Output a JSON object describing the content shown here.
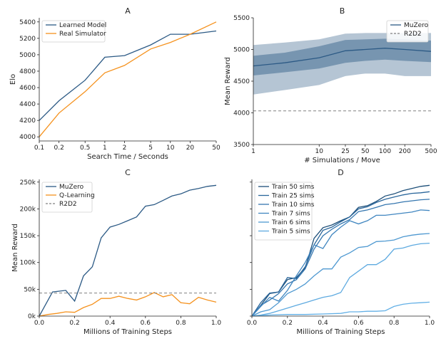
{
  "chart_data": [
    {
      "id": "A",
      "type": "line",
      "title": "A",
      "xlabel": "Search Time / Seconds",
      "ylabel": "Elo",
      "xscale": "log",
      "xlim": [
        0.1,
        50
      ],
      "ylim": [
        3950,
        5450
      ],
      "xticks": [
        0.1,
        0.2,
        0.5,
        1,
        2,
        5,
        10,
        20,
        50
      ],
      "xticklabels": [
        "0.1",
        "0.2",
        "0.5",
        "1",
        "2",
        "5",
        "10",
        "20",
        "50"
      ],
      "yticks": [
        4000,
        4200,
        4400,
        4600,
        4800,
        5000,
        5200,
        5400
      ],
      "yticklabels": [
        "4000",
        "4200",
        "4400",
        "4600",
        "4800",
        "5000",
        "5200",
        "5400"
      ],
      "legend": "top-left",
      "series": [
        {
          "name": "Learned Model",
          "color": "#2c5a85",
          "x": [
            0.1,
            0.2,
            0.5,
            1,
            2,
            5,
            10,
            20,
            50
          ],
          "y": [
            4200,
            4440,
            4690,
            4970,
            4990,
            5120,
            5250,
            5250,
            5290
          ]
        },
        {
          "name": "Real Simulator",
          "color": "#f5921e",
          "x": [
            0.1,
            0.2,
            0.5,
            1,
            2,
            5,
            10,
            20,
            50
          ],
          "y": [
            4000,
            4290,
            4550,
            4780,
            4870,
            5070,
            5150,
            5250,
            5400
          ]
        }
      ]
    },
    {
      "id": "B",
      "type": "line",
      "title": "B",
      "xlabel": "# Simulations / Move",
      "ylabel": "Mean Reward",
      "xscale": "log",
      "xlim": [
        1,
        500
      ],
      "ylim": [
        3500,
        5500
      ],
      "xticks": [
        1,
        10,
        25,
        50,
        100,
        200,
        500
      ],
      "xticklabels": [
        "1",
        "10",
        "25",
        "50",
        "100",
        "200",
        "500"
      ],
      "yticks": [
        3500,
        4000,
        4500,
        5000,
        5500
      ],
      "yticklabels": [
        "3500",
        "4000",
        "4500",
        "5000",
        "5500"
      ],
      "legend": "top-right",
      "series": [
        {
          "name": "MuZero",
          "color": "#2c5a85",
          "x": [
            1,
            3,
            10,
            25,
            50,
            100,
            200,
            500
          ],
          "y": [
            4740,
            4790,
            4870,
            4980,
            5000,
            5020,
            5000,
            4970
          ],
          "band_inner_low": [
            4590,
            4640,
            4700,
            4790,
            4820,
            4840,
            4820,
            4800
          ],
          "band_inner_high": [
            4900,
            4950,
            5050,
            5150,
            5160,
            5170,
            5160,
            5140
          ],
          "band_outer_low": [
            4290,
            4360,
            4440,
            4580,
            4620,
            4620,
            4580,
            4580
          ],
          "band_outer_high": [
            5070,
            5110,
            5160,
            5250,
            5260,
            5260,
            5260,
            5260
          ]
        },
        {
          "name": "R2D2",
          "color": "#808080",
          "dashed": true,
          "x": [
            1,
            500
          ],
          "y": [
            4030,
            4030
          ]
        }
      ]
    },
    {
      "id": "C",
      "type": "line",
      "title": "C",
      "xlabel": "Millions of Training Steps",
      "ylabel": "Mean Reward",
      "xlim": [
        0,
        1.0
      ],
      "ylim": [
        0,
        255000
      ],
      "xticks": [
        0,
        0.2,
        0.4,
        0.6,
        0.8,
        1.0
      ],
      "xticklabels": [
        "0.0",
        "0.2",
        "0.4",
        "0.6",
        "0.8",
        "1.0"
      ],
      "yticks": [
        0,
        50000,
        100000,
        150000,
        200000,
        250000
      ],
      "yticklabels": [
        "0k",
        "50k",
        "100k",
        "150k",
        "200k",
        "250k"
      ],
      "legend": "top-left",
      "series": [
        {
          "name": "MuZero",
          "color": "#2c5a85",
          "x": [
            0,
            0.025,
            0.075,
            0.125,
            0.15,
            0.2,
            0.25,
            0.3,
            0.35,
            0.4,
            0.45,
            0.5,
            0.55,
            0.6,
            0.65,
            0.7,
            0.75,
            0.8,
            0.85,
            0.9,
            0.95,
            1.0
          ],
          "y": [
            0,
            15000,
            45000,
            47000,
            48000,
            28000,
            75000,
            92000,
            146000,
            166000,
            171000,
            178000,
            185000,
            205000,
            208000,
            216000,
            224000,
            228000,
            235000,
            238000,
            242000,
            244000
          ]
        },
        {
          "name": "Q-Learning",
          "color": "#f5921e",
          "x": [
            0,
            0.05,
            0.1,
            0.15,
            0.2,
            0.25,
            0.3,
            0.35,
            0.4,
            0.45,
            0.5,
            0.55,
            0.6,
            0.65,
            0.7,
            0.75,
            0.8,
            0.85,
            0.9,
            0.95,
            1.0
          ],
          "y": [
            0,
            3000,
            5000,
            8000,
            7000,
            16000,
            22000,
            33000,
            33000,
            37000,
            33000,
            30000,
            36000,
            44000,
            36000,
            40000,
            25000,
            23000,
            35000,
            30000,
            26000
          ]
        },
        {
          "name": "R2D2",
          "color": "#808080",
          "dashed": true,
          "x": [
            0,
            1.0
          ],
          "y": [
            43000,
            43000
          ]
        }
      ]
    },
    {
      "id": "D",
      "type": "line",
      "title": "D",
      "xlabel": "Millions of Training Steps",
      "ylabel": "",
      "xlim": [
        0,
        1.0
      ],
      "ylim": [
        0,
        255000
      ],
      "xticks": [
        0,
        0.2,
        0.4,
        0.6,
        0.8,
        1.0
      ],
      "xticklabels": [
        "0.0",
        "0.2",
        "0.4",
        "0.6",
        "0.8",
        "1.0"
      ],
      "yticks": [
        0,
        50000,
        100000,
        150000,
        200000,
        250000
      ],
      "yticklabels": [
        "",
        "",
        "",
        "",
        "",
        ""
      ],
      "legend": "top-left",
      "series": [
        {
          "name": "Train 50 sims",
          "color": "#1d4f79",
          "x": [
            0,
            0.05,
            0.1,
            0.15,
            0.2,
            0.25,
            0.3,
            0.35,
            0.4,
            0.45,
            0.5,
            0.55,
            0.6,
            0.65,
            0.7,
            0.75,
            0.8,
            0.85,
            0.9,
            0.95,
            1.0
          ],
          "y": [
            0,
            20000,
            42000,
            45000,
            68000,
            72000,
            90000,
            145000,
            165000,
            170000,
            178000,
            185000,
            203000,
            206000,
            214000,
            224000,
            228000,
            234000,
            238000,
            242000,
            244000
          ]
        },
        {
          "name": "Train 25 sims",
          "color": "#2a669b",
          "x": [
            0,
            0.05,
            0.1,
            0.15,
            0.2,
            0.25,
            0.3,
            0.35,
            0.4,
            0.45,
            0.5,
            0.55,
            0.6,
            0.65,
            0.7,
            0.75,
            0.8,
            0.85,
            0.9,
            0.95,
            1.0
          ],
          "y": [
            0,
            25000,
            43000,
            45000,
            72000,
            70000,
            92000,
            133000,
            160000,
            166000,
            176000,
            185000,
            200000,
            204000,
            212000,
            218000,
            222000,
            226000,
            229000,
            230000,
            232000
          ]
        },
        {
          "name": "Train 10 sims",
          "color": "#3576af",
          "x": [
            0,
            0.05,
            0.1,
            0.15,
            0.2,
            0.25,
            0.3,
            0.35,
            0.4,
            0.45,
            0.5,
            0.55,
            0.6,
            0.65,
            0.7,
            0.75,
            0.8,
            0.85,
            0.9,
            0.95,
            1.0
          ],
          "y": [
            0,
            20000,
            30000,
            42000,
            60000,
            68000,
            88000,
            125000,
            150000,
            162000,
            172000,
            180000,
            195000,
            198000,
            203000,
            208000,
            210000,
            213000,
            215000,
            217000,
            218000
          ]
        },
        {
          "name": "Train 7 sims",
          "color": "#4086c0",
          "x": [
            0,
            0.05,
            0.1,
            0.15,
            0.2,
            0.25,
            0.3,
            0.35,
            0.4,
            0.45,
            0.5,
            0.55,
            0.6,
            0.65,
            0.7,
            0.75,
            0.8,
            0.85,
            0.9,
            0.95,
            1.0
          ],
          "y": [
            0,
            18000,
            35000,
            28000,
            48000,
            75000,
            100000,
            133000,
            126000,
            152000,
            166000,
            178000,
            172000,
            178000,
            188000,
            188000,
            190000,
            192000,
            194000,
            198000,
            197000
          ]
        },
        {
          "name": "Train 6 sims",
          "color": "#4f99d1",
          "x": [
            0,
            0.05,
            0.1,
            0.15,
            0.2,
            0.25,
            0.3,
            0.35,
            0.4,
            0.45,
            0.5,
            0.55,
            0.6,
            0.65,
            0.7,
            0.75,
            0.8,
            0.85,
            0.9,
            0.95,
            1.0
          ],
          "y": [
            0,
            8000,
            12000,
            25000,
            42000,
            50000,
            60000,
            75000,
            88000,
            88000,
            110000,
            118000,
            128000,
            130000,
            139000,
            140000,
            142000,
            148000,
            151000,
            153000,
            154000
          ]
        },
        {
          "name": "Train 5 sims",
          "color": "#5eaae0",
          "x": [
            0,
            0.05,
            0.1,
            0.15,
            0.2,
            0.25,
            0.3,
            0.35,
            0.4,
            0.45,
            0.5,
            0.55,
            0.6,
            0.65,
            0.7,
            0.75,
            0.8,
            0.85,
            0.9,
            0.95,
            1.0
          ],
          "y": [
            0,
            2000,
            5000,
            10000,
            15000,
            20000,
            25000,
            30000,
            35000,
            38000,
            44000,
            72000,
            84000,
            96000,
            96000,
            106000,
            125000,
            127000,
            132000,
            135000,
            136000
          ]
        },
        {
          "name": "",
          "color": "#63b0e6",
          "x": [
            0,
            0.1,
            0.2,
            0.3,
            0.4,
            0.5,
            0.55,
            0.6,
            0.65,
            0.7,
            0.75,
            0.8,
            0.85,
            0.9,
            0.95,
            1.0
          ],
          "y": [
            0,
            2000,
            3000,
            3000,
            4000,
            5000,
            8000,
            8000,
            9000,
            9000,
            10000,
            18000,
            22000,
            24000,
            25000,
            26000
          ]
        }
      ]
    }
  ]
}
